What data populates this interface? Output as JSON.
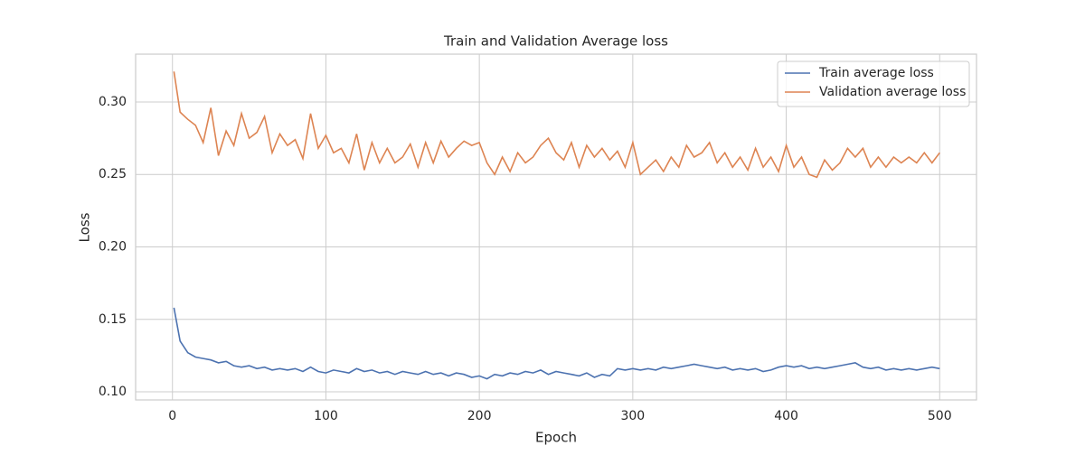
{
  "chart_data": {
    "type": "line",
    "title": "Train and Validation Average loss",
    "x_label": "Epoch",
    "y_label": "Loss",
    "x": [
      1,
      5,
      10,
      15,
      20,
      25,
      30,
      35,
      40,
      45,
      50,
      55,
      60,
      65,
      70,
      75,
      80,
      85,
      90,
      95,
      100,
      105,
      110,
      115,
      120,
      125,
      130,
      135,
      140,
      145,
      150,
      155,
      160,
      165,
      170,
      175,
      180,
      185,
      190,
      195,
      200,
      205,
      210,
      215,
      220,
      225,
      230,
      235,
      240,
      245,
      250,
      255,
      260,
      265,
      270,
      275,
      280,
      285,
      290,
      295,
      300,
      305,
      310,
      315,
      320,
      325,
      330,
      335,
      340,
      345,
      350,
      355,
      360,
      365,
      370,
      375,
      380,
      385,
      390,
      395,
      400,
      405,
      410,
      415,
      420,
      425,
      430,
      435,
      440,
      445,
      450,
      455,
      460,
      465,
      470,
      475,
      480,
      485,
      490,
      495,
      500
    ],
    "series": [
      {
        "name": "Train average loss",
        "color": "#4c72b0",
        "values": [
          0.158,
          0.135,
          0.127,
          0.124,
          0.123,
          0.122,
          0.12,
          0.121,
          0.118,
          0.117,
          0.118,
          0.116,
          0.117,
          0.115,
          0.116,
          0.115,
          0.116,
          0.114,
          0.117,
          0.114,
          0.113,
          0.115,
          0.114,
          0.113,
          0.116,
          0.114,
          0.115,
          0.113,
          0.114,
          0.112,
          0.114,
          0.113,
          0.112,
          0.114,
          0.112,
          0.113,
          0.111,
          0.113,
          0.112,
          0.11,
          0.111,
          0.109,
          0.112,
          0.111,
          0.113,
          0.112,
          0.114,
          0.113,
          0.115,
          0.112,
          0.114,
          0.113,
          0.112,
          0.111,
          0.113,
          0.11,
          0.112,
          0.111,
          0.116,
          0.115,
          0.116,
          0.115,
          0.116,
          0.115,
          0.117,
          0.116,
          0.117,
          0.118,
          0.119,
          0.118,
          0.117,
          0.116,
          0.117,
          0.115,
          0.116,
          0.115,
          0.116,
          0.114,
          0.115,
          0.117,
          0.118,
          0.117,
          0.118,
          0.116,
          0.117,
          0.116,
          0.117,
          0.118,
          0.119,
          0.12,
          0.117,
          0.116,
          0.117,
          0.115,
          0.116,
          0.115,
          0.116,
          0.115,
          0.116,
          0.117,
          0.116
        ]
      },
      {
        "name": "Validation average loss",
        "color": "#dd8452",
        "values": [
          0.321,
          0.293,
          0.288,
          0.284,
          0.272,
          0.296,
          0.263,
          0.28,
          0.27,
          0.292,
          0.275,
          0.279,
          0.29,
          0.265,
          0.278,
          0.27,
          0.274,
          0.261,
          0.292,
          0.268,
          0.277,
          0.265,
          0.268,
          0.258,
          0.278,
          0.253,
          0.272,
          0.258,
          0.268,
          0.258,
          0.262,
          0.271,
          0.255,
          0.272,
          0.258,
          0.273,
          0.262,
          0.268,
          0.273,
          0.27,
          0.272,
          0.258,
          0.25,
          0.262,
          0.252,
          0.265,
          0.258,
          0.262,
          0.27,
          0.275,
          0.265,
          0.26,
          0.272,
          0.255,
          0.27,
          0.262,
          0.268,
          0.26,
          0.266,
          0.255,
          0.272,
          0.25,
          0.255,
          0.26,
          0.252,
          0.262,
          0.255,
          0.27,
          0.262,
          0.265,
          0.272,
          0.258,
          0.265,
          0.255,
          0.262,
          0.253,
          0.268,
          0.255,
          0.262,
          0.252,
          0.27,
          0.255,
          0.262,
          0.25,
          0.248,
          0.26,
          0.253,
          0.258,
          0.268,
          0.262,
          0.268,
          0.255,
          0.262,
          0.255,
          0.262,
          0.258,
          0.262,
          0.258,
          0.265,
          0.258,
          0.265
        ]
      }
    ],
    "xlim": [
      -24,
      524
    ],
    "xticks": [
      0,
      100,
      200,
      300,
      400,
      500
    ],
    "ylim": [
      0.0944,
      0.333
    ],
    "yticks": [
      {
        "value": 0.1,
        "label": "0.10"
      },
      0.15,
      {
        "value": 0.2,
        "label": "0.20"
      },
      0.25,
      {
        "value": 0.3,
        "label": "0.30"
      }
    ],
    "grid": true,
    "legend": "upper right"
  }
}
